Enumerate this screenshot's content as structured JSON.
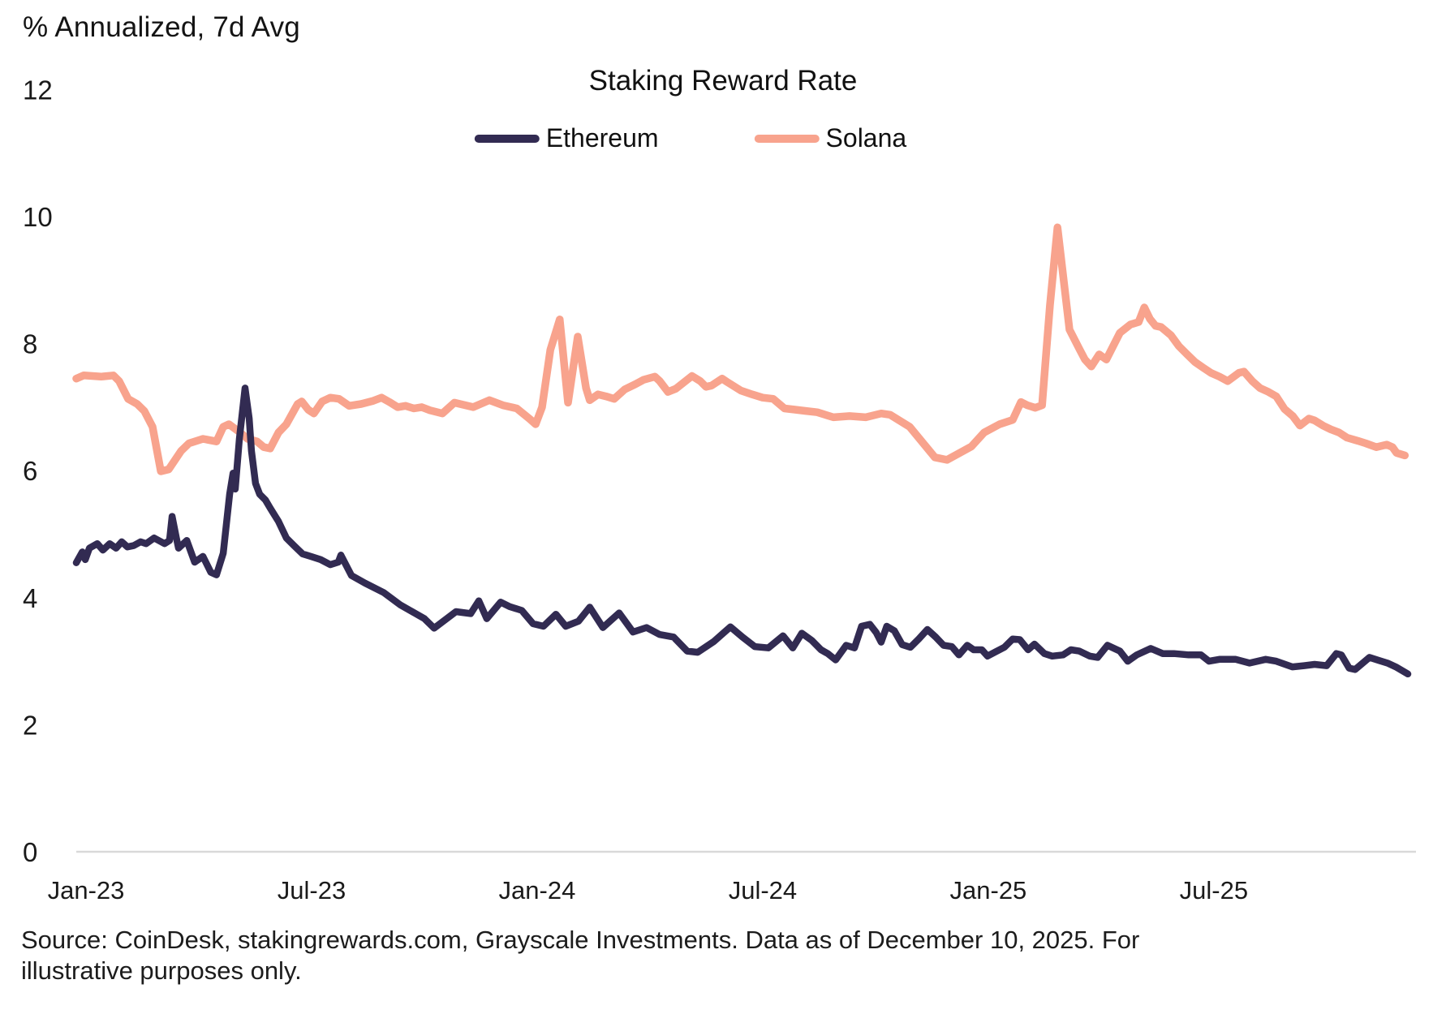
{
  "header": {
    "y_axis_unit_label": "% Annualized, 7d Avg"
  },
  "footer": {
    "source_text": "Source: CoinDesk, stakingrewards.com, Grayscale Investments. Data as of December 10, 2025. For illustrative purposes only."
  },
  "colors": {
    "ethereum": "#322B52",
    "solana": "#F8A38D",
    "axis": "#D9D9D9",
    "text": "#1A1A1A"
  },
  "chart_data": {
    "type": "line",
    "title": "Staking Reward Rate",
    "ylabel": "% Annualized, 7d Avg",
    "xlabel": "",
    "ylim": [
      0,
      12
    ],
    "y_ticks": [
      0,
      2,
      4,
      6,
      8,
      10,
      12
    ],
    "x_unit": "months since Jan-2023",
    "x_domain_months": [
      -0.3,
      35.4
    ],
    "x_ticks": [
      {
        "m": 0,
        "label": "Jan-23"
      },
      {
        "m": 6,
        "label": "Jul-23"
      },
      {
        "m": 12,
        "label": "Jan-24"
      },
      {
        "m": 18,
        "label": "Jul-24"
      },
      {
        "m": 24,
        "label": "Jan-25"
      },
      {
        "m": 30,
        "label": "Jul-25"
      }
    ],
    "grid": false,
    "legend_position": "top-center",
    "series": [
      {
        "name": "Ethereum",
        "color": "#322B52",
        "points": [
          [
            -0.26,
            4.55
          ],
          [
            -0.1,
            4.72
          ],
          [
            -0.02,
            4.6
          ],
          [
            0.09,
            4.78
          ],
          [
            0.3,
            4.85
          ],
          [
            0.45,
            4.75
          ],
          [
            0.63,
            4.85
          ],
          [
            0.8,
            4.78
          ],
          [
            0.95,
            4.88
          ],
          [
            1.1,
            4.8
          ],
          [
            1.27,
            4.82
          ],
          [
            1.45,
            4.88
          ],
          [
            1.6,
            4.85
          ],
          [
            1.81,
            4.94
          ],
          [
            2.09,
            4.85
          ],
          [
            2.22,
            4.9
          ],
          [
            2.29,
            5.28
          ],
          [
            2.4,
            4.95
          ],
          [
            2.46,
            4.78
          ],
          [
            2.68,
            4.9
          ],
          [
            2.89,
            4.56
          ],
          [
            3.11,
            4.65
          ],
          [
            3.32,
            4.4
          ],
          [
            3.47,
            4.36
          ],
          [
            3.65,
            4.7
          ],
          [
            3.82,
            5.63
          ],
          [
            3.91,
            5.96
          ],
          [
            3.97,
            5.71
          ],
          [
            4.08,
            6.5
          ],
          [
            4.23,
            7.3
          ],
          [
            4.34,
            6.82
          ],
          [
            4.4,
            6.31
          ],
          [
            4.51,
            5.8
          ],
          [
            4.62,
            5.63
          ],
          [
            4.77,
            5.54
          ],
          [
            4.9,
            5.41
          ],
          [
            5.12,
            5.2
          ],
          [
            5.33,
            4.94
          ],
          [
            5.55,
            4.81
          ],
          [
            5.76,
            4.69
          ],
          [
            5.98,
            4.65
          ],
          [
            6.24,
            4.6
          ],
          [
            6.5,
            4.52
          ],
          [
            6.71,
            4.56
          ],
          [
            6.78,
            4.67
          ],
          [
            7.06,
            4.35
          ],
          [
            7.42,
            4.23
          ],
          [
            7.92,
            4.08
          ],
          [
            8.35,
            3.89
          ],
          [
            9.0,
            3.67
          ],
          [
            9.26,
            3.52
          ],
          [
            9.84,
            3.78
          ],
          [
            10.23,
            3.75
          ],
          [
            10.45,
            3.95
          ],
          [
            10.66,
            3.67
          ],
          [
            11.03,
            3.93
          ],
          [
            11.27,
            3.86
          ],
          [
            11.59,
            3.8
          ],
          [
            11.89,
            3.59
          ],
          [
            12.17,
            3.55
          ],
          [
            12.5,
            3.74
          ],
          [
            12.76,
            3.55
          ],
          [
            13.1,
            3.63
          ],
          [
            13.4,
            3.85
          ],
          [
            13.75,
            3.53
          ],
          [
            14.18,
            3.76
          ],
          [
            14.55,
            3.46
          ],
          [
            14.91,
            3.53
          ],
          [
            15.26,
            3.42
          ],
          [
            15.63,
            3.38
          ],
          [
            15.99,
            3.16
          ],
          [
            16.27,
            3.14
          ],
          [
            16.7,
            3.31
          ],
          [
            17.14,
            3.54
          ],
          [
            17.46,
            3.38
          ],
          [
            17.79,
            3.23
          ],
          [
            18.15,
            3.21
          ],
          [
            18.54,
            3.4
          ],
          [
            18.8,
            3.21
          ],
          [
            19.04,
            3.44
          ],
          [
            19.3,
            3.33
          ],
          [
            19.55,
            3.18
          ],
          [
            19.73,
            3.12
          ],
          [
            19.94,
            3.02
          ],
          [
            20.22,
            3.25
          ],
          [
            20.44,
            3.21
          ],
          [
            20.63,
            3.55
          ],
          [
            20.85,
            3.58
          ],
          [
            21.02,
            3.45
          ],
          [
            21.15,
            3.3
          ],
          [
            21.3,
            3.55
          ],
          [
            21.5,
            3.48
          ],
          [
            21.71,
            3.26
          ],
          [
            21.93,
            3.22
          ],
          [
            22.15,
            3.35
          ],
          [
            22.38,
            3.5
          ],
          [
            22.6,
            3.38
          ],
          [
            22.81,
            3.25
          ],
          [
            23.03,
            3.23
          ],
          [
            23.22,
            3.1
          ],
          [
            23.44,
            3.25
          ],
          [
            23.61,
            3.18
          ],
          [
            23.83,
            3.18
          ],
          [
            23.98,
            3.08
          ],
          [
            24.2,
            3.15
          ],
          [
            24.43,
            3.22
          ],
          [
            24.65,
            3.35
          ],
          [
            24.84,
            3.34
          ],
          [
            25.06,
            3.18
          ],
          [
            25.23,
            3.27
          ],
          [
            25.49,
            3.12
          ],
          [
            25.7,
            3.08
          ],
          [
            25.99,
            3.1
          ],
          [
            26.2,
            3.18
          ],
          [
            26.42,
            3.16
          ],
          [
            26.7,
            3.08
          ],
          [
            26.91,
            3.06
          ],
          [
            27.17,
            3.25
          ],
          [
            27.5,
            3.16
          ],
          [
            27.71,
            3.0
          ],
          [
            27.95,
            3.1
          ],
          [
            28.32,
            3.2
          ],
          [
            28.64,
            3.12
          ],
          [
            28.94,
            3.12
          ],
          [
            29.33,
            3.1
          ],
          [
            29.66,
            3.1
          ],
          [
            29.87,
            3.0
          ],
          [
            30.15,
            3.03
          ],
          [
            30.58,
            3.03
          ],
          [
            30.95,
            2.97
          ],
          [
            31.38,
            3.03
          ],
          [
            31.66,
            3.0
          ],
          [
            32.09,
            2.91
          ],
          [
            32.4,
            2.93
          ],
          [
            32.68,
            2.95
          ],
          [
            33.0,
            2.93
          ],
          [
            33.26,
            3.12
          ],
          [
            33.39,
            3.1
          ],
          [
            33.6,
            2.89
          ],
          [
            33.76,
            2.87
          ],
          [
            34.14,
            3.06
          ],
          [
            34.4,
            3.01
          ],
          [
            34.62,
            2.97
          ],
          [
            34.84,
            2.91
          ],
          [
            35.16,
            2.8
          ]
        ]
      },
      {
        "name": "Solana",
        "color": "#F8A38D",
        "points": [
          [
            -0.26,
            7.45
          ],
          [
            -0.06,
            7.5
          ],
          [
            0.4,
            7.48
          ],
          [
            0.73,
            7.5
          ],
          [
            0.88,
            7.41
          ],
          [
            1.12,
            7.13
          ],
          [
            1.36,
            7.05
          ],
          [
            1.55,
            6.94
          ],
          [
            1.77,
            6.69
          ],
          [
            1.99,
            5.99
          ],
          [
            2.2,
            6.02
          ],
          [
            2.53,
            6.31
          ],
          [
            2.74,
            6.43
          ],
          [
            3.11,
            6.5
          ],
          [
            3.47,
            6.46
          ],
          [
            3.65,
            6.69
          ],
          [
            3.8,
            6.73
          ],
          [
            4.1,
            6.6
          ],
          [
            4.3,
            6.5
          ],
          [
            4.55,
            6.46
          ],
          [
            4.73,
            6.37
          ],
          [
            4.9,
            6.35
          ],
          [
            5.12,
            6.6
          ],
          [
            5.33,
            6.73
          ],
          [
            5.63,
            7.05
          ],
          [
            5.74,
            7.09
          ],
          [
            5.91,
            6.96
          ],
          [
            6.06,
            6.9
          ],
          [
            6.28,
            7.09
          ],
          [
            6.5,
            7.15
          ],
          [
            6.73,
            7.13
          ],
          [
            7.0,
            7.02
          ],
          [
            7.32,
            7.05
          ],
          [
            7.64,
            7.1
          ],
          [
            7.86,
            7.15
          ],
          [
            8.07,
            7.08
          ],
          [
            8.29,
            7.0
          ],
          [
            8.5,
            7.02
          ],
          [
            8.72,
            6.98
          ],
          [
            8.93,
            7.0
          ],
          [
            9.15,
            6.95
          ],
          [
            9.48,
            6.9
          ],
          [
            9.8,
            7.07
          ],
          [
            10.3,
            7.0
          ],
          [
            10.73,
            7.11
          ],
          [
            11.09,
            7.03
          ],
          [
            11.46,
            6.98
          ],
          [
            11.81,
            6.81
          ],
          [
            11.96,
            6.73
          ],
          [
            12.13,
            7.0
          ],
          [
            12.35,
            7.9
          ],
          [
            12.6,
            8.38
          ],
          [
            12.82,
            7.07
          ],
          [
            13.08,
            8.11
          ],
          [
            13.3,
            7.3
          ],
          [
            13.4,
            7.11
          ],
          [
            13.62,
            7.2
          ],
          [
            13.83,
            7.17
          ],
          [
            14.05,
            7.13
          ],
          [
            14.33,
            7.28
          ],
          [
            14.61,
            7.36
          ],
          [
            14.83,
            7.43
          ],
          [
            15.13,
            7.48
          ],
          [
            15.26,
            7.41
          ],
          [
            15.48,
            7.24
          ],
          [
            15.69,
            7.29
          ],
          [
            15.99,
            7.43
          ],
          [
            16.12,
            7.49
          ],
          [
            16.34,
            7.41
          ],
          [
            16.49,
            7.32
          ],
          [
            16.64,
            7.34
          ],
          [
            16.92,
            7.45
          ],
          [
            17.07,
            7.39
          ],
          [
            17.42,
            7.26
          ],
          [
            17.72,
            7.2
          ],
          [
            18.0,
            7.15
          ],
          [
            18.28,
            7.13
          ],
          [
            18.58,
            6.98
          ],
          [
            18.86,
            6.96
          ],
          [
            19.15,
            6.94
          ],
          [
            19.45,
            6.92
          ],
          [
            19.88,
            6.84
          ],
          [
            20.31,
            6.86
          ],
          [
            20.74,
            6.84
          ],
          [
            21.15,
            6.9
          ],
          [
            21.39,
            6.88
          ],
          [
            21.91,
            6.69
          ],
          [
            22.58,
            6.21
          ],
          [
            22.9,
            6.17
          ],
          [
            23.55,
            6.38
          ],
          [
            23.89,
            6.6
          ],
          [
            24.3,
            6.73
          ],
          [
            24.65,
            6.8
          ],
          [
            24.87,
            7.08
          ],
          [
            25.04,
            7.03
          ],
          [
            25.25,
            6.99
          ],
          [
            25.43,
            7.03
          ],
          [
            25.64,
            8.6
          ],
          [
            25.84,
            9.83
          ],
          [
            26.16,
            8.22
          ],
          [
            26.42,
            7.92
          ],
          [
            26.57,
            7.75
          ],
          [
            26.74,
            7.64
          ],
          [
            26.95,
            7.83
          ],
          [
            27.14,
            7.75
          ],
          [
            27.5,
            8.17
          ],
          [
            27.78,
            8.3
          ],
          [
            28.0,
            8.34
          ],
          [
            28.15,
            8.57
          ],
          [
            28.3,
            8.39
          ],
          [
            28.45,
            8.28
          ],
          [
            28.6,
            8.26
          ],
          [
            28.86,
            8.13
          ],
          [
            29.07,
            7.96
          ],
          [
            29.29,
            7.83
          ],
          [
            29.5,
            7.71
          ],
          [
            29.72,
            7.62
          ],
          [
            29.92,
            7.54
          ],
          [
            30.15,
            7.48
          ],
          [
            30.37,
            7.41
          ],
          [
            30.67,
            7.54
          ],
          [
            30.8,
            7.56
          ],
          [
            31.02,
            7.41
          ],
          [
            31.23,
            7.3
          ],
          [
            31.45,
            7.24
          ],
          [
            31.66,
            7.17
          ],
          [
            31.88,
            6.97
          ],
          [
            32.1,
            6.86
          ],
          [
            32.29,
            6.71
          ],
          [
            32.53,
            6.82
          ],
          [
            32.68,
            6.79
          ],
          [
            32.9,
            6.71
          ],
          [
            33.11,
            6.65
          ],
          [
            33.33,
            6.6
          ],
          [
            33.54,
            6.52
          ],
          [
            33.83,
            6.47
          ],
          [
            34.04,
            6.43
          ],
          [
            34.32,
            6.37
          ],
          [
            34.6,
            6.41
          ],
          [
            34.75,
            6.37
          ],
          [
            34.86,
            6.28
          ],
          [
            35.08,
            6.24
          ]
        ]
      }
    ],
    "legend": [
      "Ethereum",
      "Solana"
    ]
  }
}
